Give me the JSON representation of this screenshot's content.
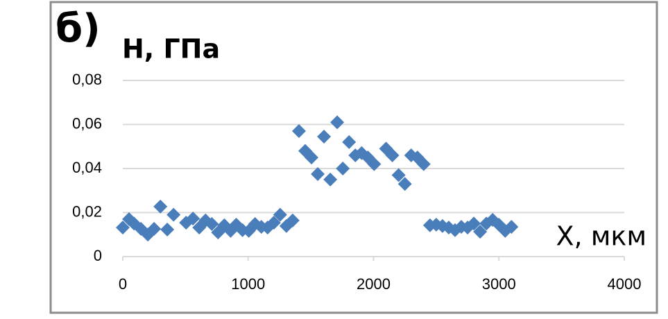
{
  "chart_data": {
    "type": "scatter",
    "panel_label": "б)",
    "y_label": "H, ГПа",
    "x_label": "X, мкм",
    "color": "#4a7ebb",
    "grid": true,
    "x": [
      0,
      50,
      90,
      145,
      200,
      250,
      300,
      355,
      405,
      505,
      560,
      610,
      660,
      710,
      760,
      810,
      860,
      905,
      955,
      1005,
      1055,
      1105,
      1155,
      1205,
      1255,
      1305,
      1355,
      1405,
      1455,
      1505,
      1555,
      1605,
      1655,
      1710,
      1755,
      1805,
      1855,
      1905,
      1955,
      2005,
      2100,
      2150,
      2200,
      2250,
      2300,
      2350,
      2400,
      2450,
      2500,
      2550,
      2600,
      2650,
      2700,
      2750,
      2800,
      2850,
      2900,
      2950,
      3000,
      3050,
      3100
    ],
    "values": [
      0.0132,
      0.017,
      0.015,
      0.0126,
      0.01,
      0.0126,
      0.0227,
      0.0123,
      0.019,
      0.0154,
      0.0173,
      0.0132,
      0.0164,
      0.0148,
      0.011,
      0.0142,
      0.0117,
      0.0145,
      0.012,
      0.0117,
      0.0148,
      0.0135,
      0.0132,
      0.0154,
      0.019,
      0.0139,
      0.0164,
      0.057,
      0.048,
      0.045,
      0.0375,
      0.0545,
      0.035,
      0.061,
      0.04,
      0.052,
      0.046,
      0.047,
      0.045,
      0.042,
      0.049,
      0.046,
      0.037,
      0.033,
      0.046,
      0.045,
      0.042,
      0.0142,
      0.0145,
      0.0139,
      0.0132,
      0.012,
      0.0135,
      0.0132,
      0.015,
      0.0113,
      0.015,
      0.0167,
      0.0145,
      0.0117,
      0.0135
    ],
    "xlim": [
      0,
      4000
    ],
    "xticks": [
      0,
      1000,
      2000,
      3000,
      4000
    ],
    "ylim": [
      0,
      0.08
    ],
    "yticks": [
      0,
      {
        "value": 0.02,
        "label": "0,02"
      },
      {
        "value": 0.04,
        "label": "0,04"
      },
      {
        "value": 0.06,
        "label": "0,06"
      },
      {
        "value": 0.08,
        "label": "0,08"
      }
    ]
  }
}
